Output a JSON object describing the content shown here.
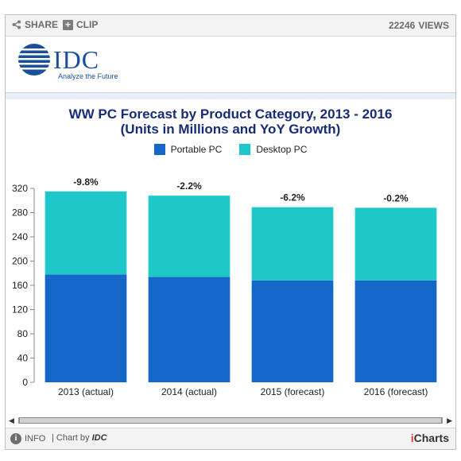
{
  "toolbar": {
    "share_label": "SHARE",
    "clip_label": "CLIP",
    "views_count": "22246",
    "views_label": "VIEWS"
  },
  "brand": {
    "logo_text": "IDC",
    "tagline": "Analyze the Future"
  },
  "footer": {
    "info_label": "INFO",
    "chart_by_prefix": "| Chart by",
    "chart_by_name": "IDC",
    "icharts_i": "i",
    "icharts_rest": "Charts"
  },
  "colors": {
    "portable": "#1467c8",
    "desktop": "#1ec8c8",
    "title": "#162c77",
    "brand": "#1a4f9c"
  },
  "chart_data": {
    "type": "bar",
    "stacked": true,
    "title": "WW PC Forecast by Product Category, 2013 - 2016",
    "subtitle": "(Units in Millions and YoY Growth)",
    "categories": [
      "2013 (actual)",
      "2014 (actual)",
      "2015 (forecast)",
      "2016 (forecast)"
    ],
    "series": [
      {
        "name": "Portable PC",
        "values": [
          178,
          174,
          168,
          168
        ],
        "color": "#1467c8"
      },
      {
        "name": "Desktop PC",
        "values": [
          137,
          134,
          121,
          120
        ],
        "color": "#1ec8c8"
      }
    ],
    "annotations": [
      "-9.8%",
      "-2.2%",
      "-6.2%",
      "-0.2%"
    ],
    "yticks": [
      0,
      40,
      80,
      120,
      160,
      200,
      240,
      280,
      320
    ],
    "ylim": [
      0,
      320
    ],
    "legend_position": "top-center",
    "grid": false
  }
}
